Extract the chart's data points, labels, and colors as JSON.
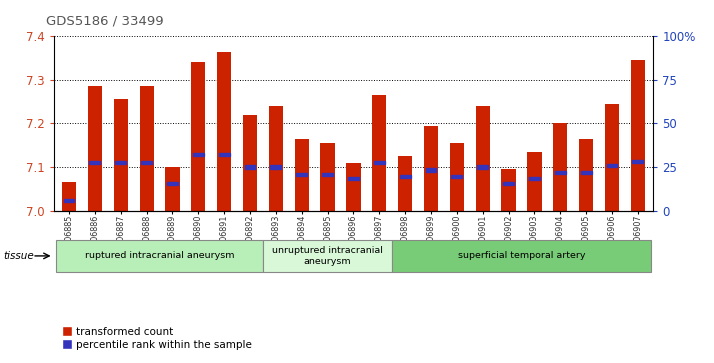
{
  "title": "GDS5186 / 33499",
  "samples": [
    "GSM1306885",
    "GSM1306886",
    "GSM1306887",
    "GSM1306888",
    "GSM1306889",
    "GSM1306890",
    "GSM1306891",
    "GSM1306892",
    "GSM1306893",
    "GSM1306894",
    "GSM1306895",
    "GSM1306896",
    "GSM1306897",
    "GSM1306898",
    "GSM1306899",
    "GSM1306900",
    "GSM1306901",
    "GSM1306902",
    "GSM1306903",
    "GSM1306904",
    "GSM1306905",
    "GSM1306906",
    "GSM1306907"
  ],
  "bar_tops": [
    7.065,
    7.285,
    7.255,
    7.285,
    7.1,
    7.34,
    7.365,
    7.22,
    7.24,
    7.165,
    7.155,
    7.11,
    7.265,
    7.125,
    7.195,
    7.155,
    7.24,
    7.095,
    7.135,
    7.2,
    7.165,
    7.245,
    7.345
  ],
  "blue_marker_y": [
    7.023,
    7.11,
    7.11,
    7.11,
    7.063,
    7.128,
    7.128,
    7.1,
    7.1,
    7.083,
    7.083,
    7.073,
    7.11,
    7.078,
    7.093,
    7.078,
    7.1,
    7.063,
    7.073,
    7.088,
    7.088,
    7.103,
    7.113
  ],
  "bar_base": 7.0,
  "ylim_left": [
    7.0,
    7.4
  ],
  "ylim_right": [
    0,
    100
  ],
  "yticks_left": [
    7.0,
    7.1,
    7.2,
    7.3,
    7.4
  ],
  "yticks_right": [
    0,
    25,
    50,
    75,
    100
  ],
  "ytick_labels_right": [
    "0",
    "25",
    "50",
    "75",
    "100%"
  ],
  "groups": [
    {
      "label": "ruptured intracranial aneurysm",
      "start": 0,
      "end": 8,
      "color": "#b8eeb8"
    },
    {
      "label": "unruptured intracranial\naneurysm",
      "start": 8,
      "end": 13,
      "color": "#d8f8d8"
    },
    {
      "label": "superficial temporal artery",
      "start": 13,
      "end": 23,
      "color": "#78cc78"
    }
  ],
  "bar_color": "#cc2200",
  "blue_color": "#3333bb",
  "bg_color": "#ffffff",
  "tissue_label": "tissue",
  "legend_red": "transformed count",
  "legend_blue": "percentile rank within the sample",
  "title_color": "#555555",
  "left_tick_color": "#cc4422",
  "right_tick_color": "#2244bb",
  "grid_linestyle": "dotted",
  "grid_color": "#000000"
}
